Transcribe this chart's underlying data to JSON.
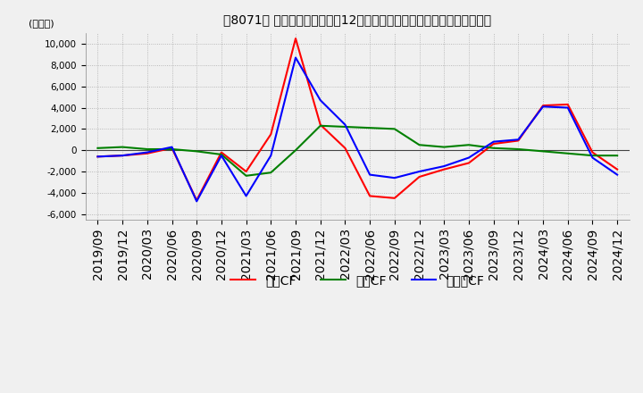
{
  "title": "【8071】 キャッシュフローの12か月移動合計の対前年同期増減額の推移",
  "ylabel": "(百万円)",
  "ylim": [
    -6500,
    11000
  ],
  "yticks": [
    -6000,
    -4000,
    -2000,
    0,
    2000,
    4000,
    6000,
    8000,
    10000
  ],
  "dates": [
    "2019/09",
    "2019/12",
    "2020/03",
    "2020/06",
    "2020/09",
    "2020/12",
    "2021/03",
    "2021/06",
    "2021/09",
    "2021/12",
    "2022/03",
    "2022/06",
    "2022/09",
    "2022/12",
    "2023/03",
    "2023/06",
    "2023/09",
    "2023/12",
    "2024/03",
    "2024/06",
    "2024/09",
    "2024/12"
  ],
  "operating_cf": [
    -600,
    -500,
    -300,
    200,
    -4700,
    -200,
    -2000,
    1500,
    10500,
    2400,
    200,
    -4300,
    -4500,
    -2500,
    -1800,
    -1200,
    600,
    900,
    4200,
    4300,
    -200,
    -1800
  ],
  "investing_cf": [
    200,
    300,
    100,
    100,
    -100,
    -400,
    -2400,
    -2100,
    0,
    2300,
    2200,
    2100,
    2000,
    500,
    300,
    500,
    200,
    100,
    -100,
    -300,
    -500,
    -500
  ],
  "free_cf": [
    -600,
    -500,
    -200,
    300,
    -4800,
    -500,
    -4300,
    -500,
    8700,
    4700,
    2400,
    -2300,
    -2600,
    -2000,
    -1500,
    -700,
    800,
    1000,
    4100,
    4000,
    -700,
    -2300
  ],
  "operating_color": "#ff0000",
  "investing_color": "#008000",
  "free_color": "#0000ff",
  "bg_color": "#f0f0f0",
  "plot_bg_color": "#f0f0f0",
  "grid_color": "#aaaaaa",
  "zero_line_color": "#444444",
  "title_fontsize": 11,
  "label_fontsize": 8,
  "tick_fontsize": 7.5,
  "legend_fontsize": 9,
  "line_width": 1.5
}
